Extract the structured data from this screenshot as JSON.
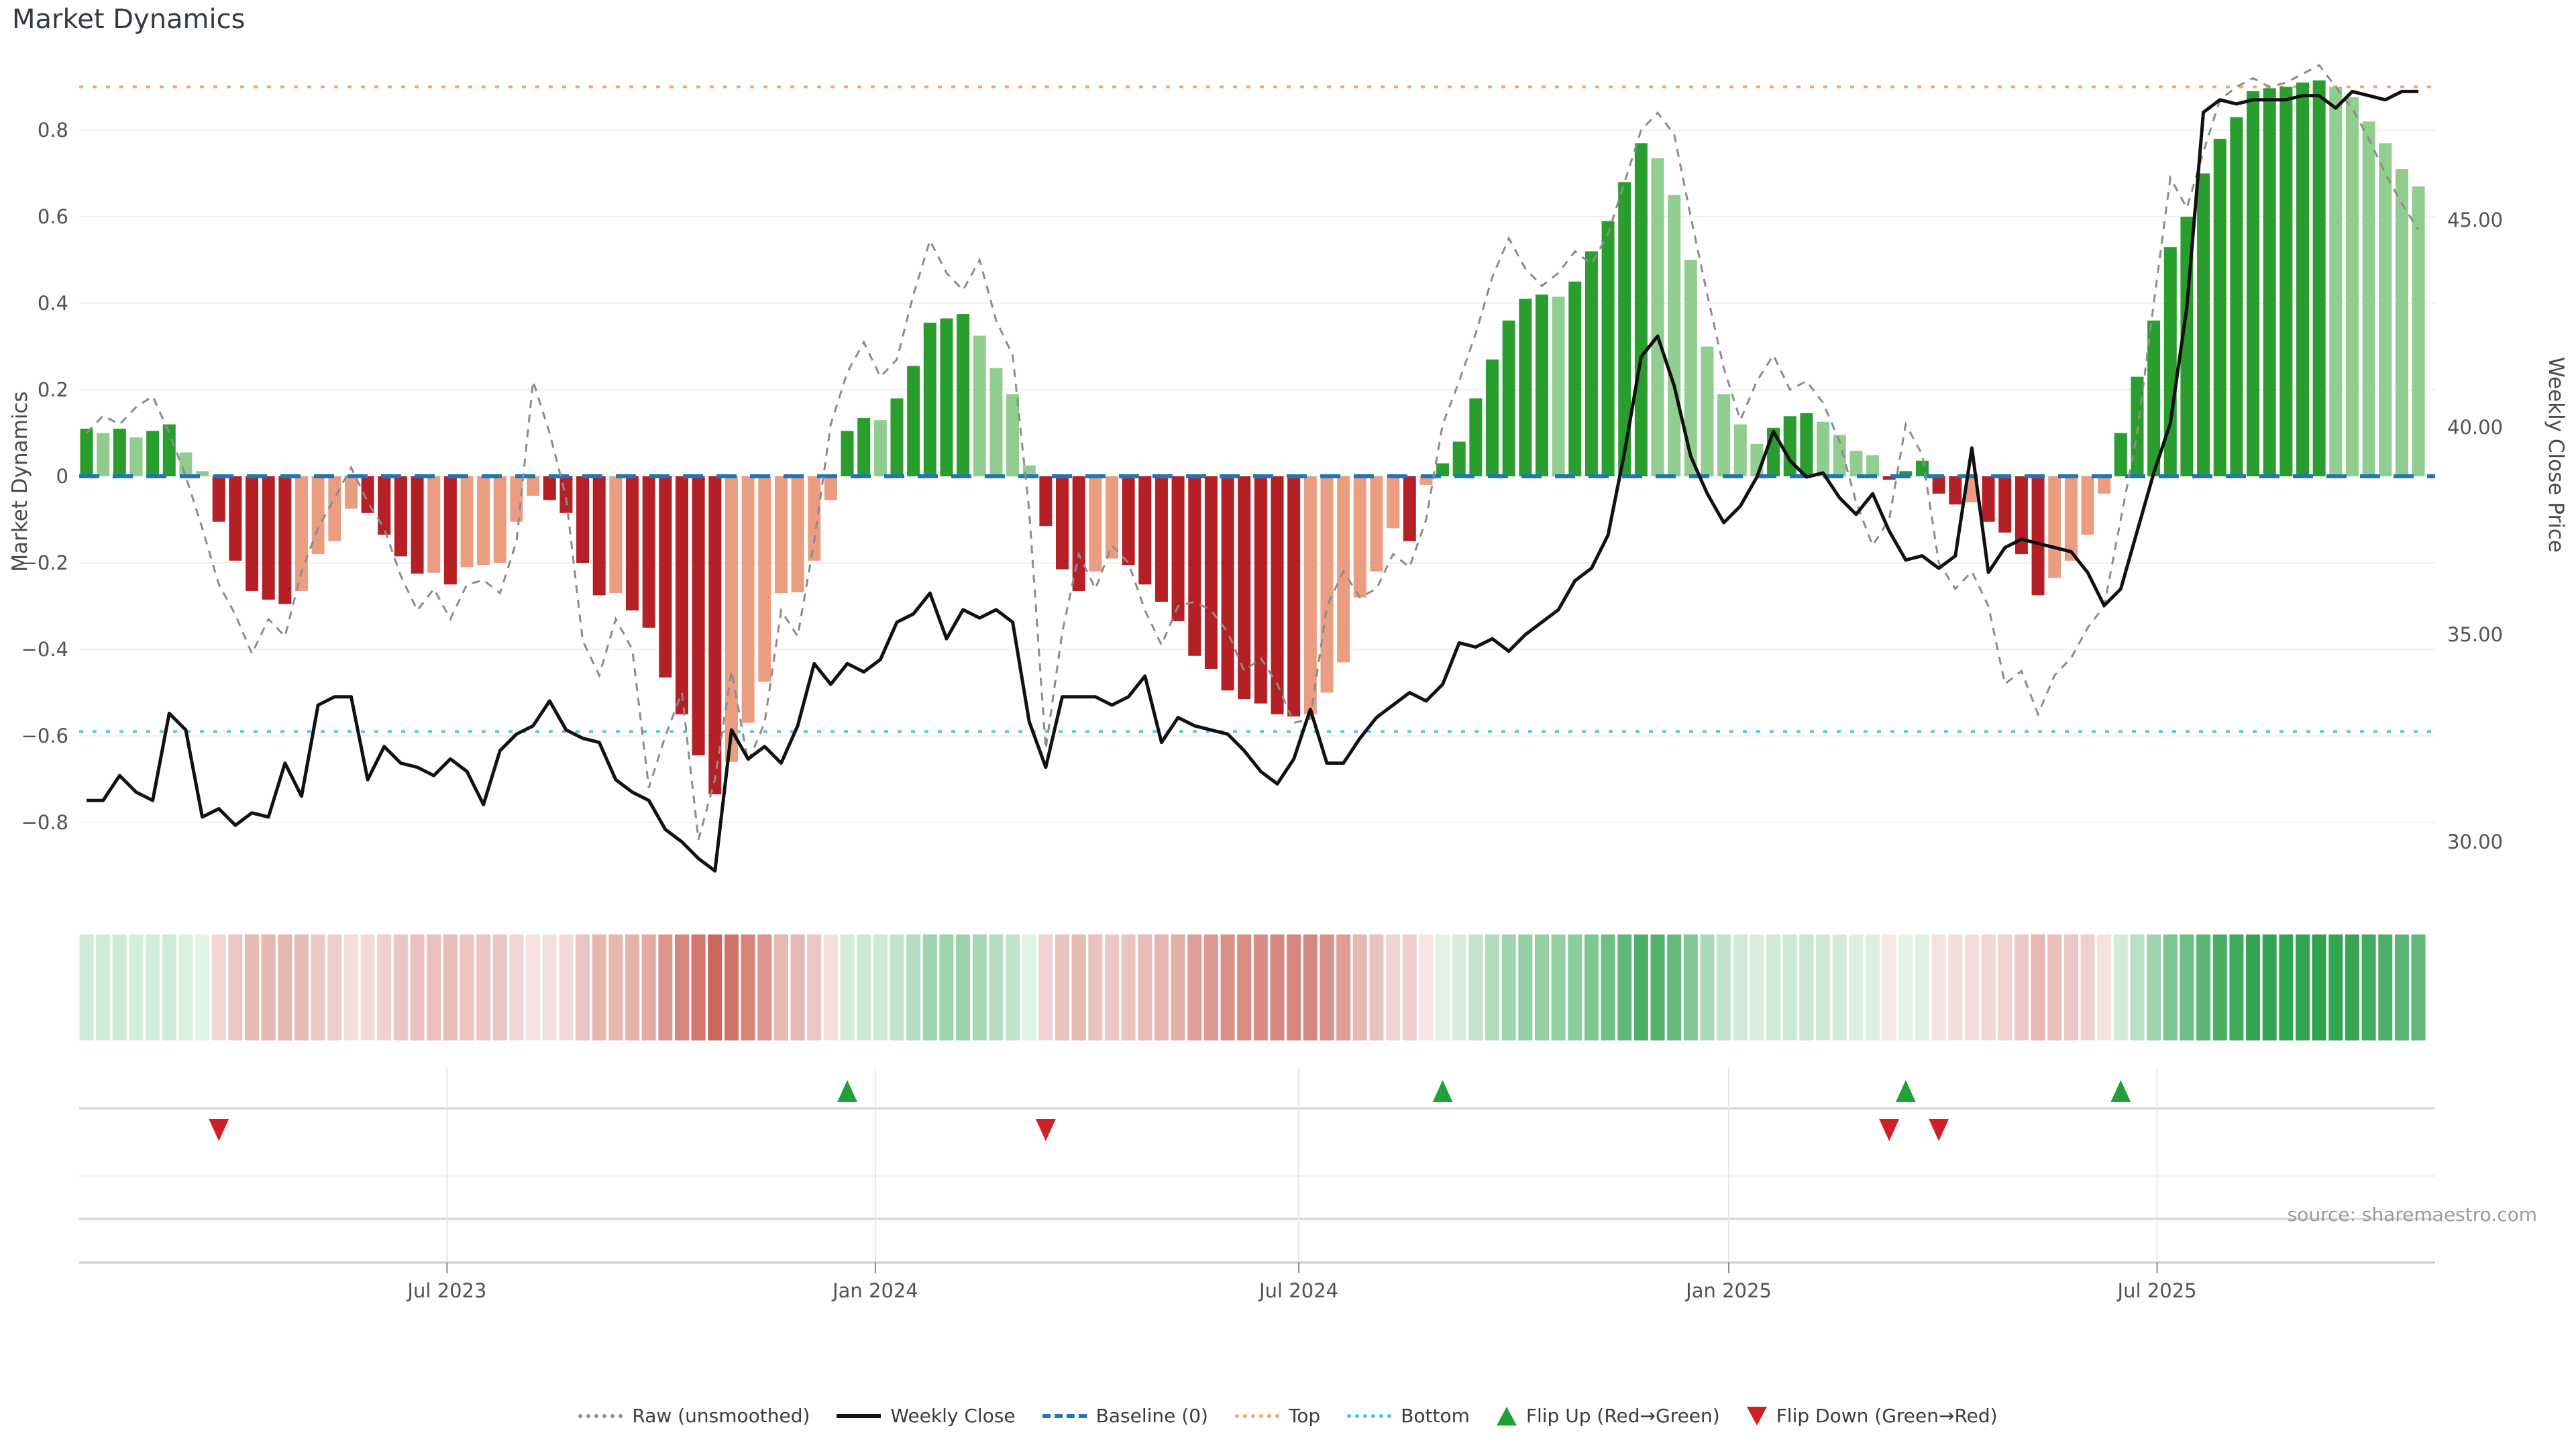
{
  "title": "Market Dynamics",
  "source_note": "source: sharemaestro.com",
  "colors": {
    "bar_dark_green": "#2a9d2f",
    "bar_light_green": "#90cd8e",
    "bar_dark_red": "#b42025",
    "bar_light_red": "#eb9d82",
    "baseline_blue": "#1f77b4",
    "top_line_orange": "#f5a86a",
    "bottom_line_cyan": "#45c8e8",
    "raw_line_gray": "#8c8c8c",
    "close_line_black": "#111111",
    "flip_up_green": "#21a038",
    "flip_down_red": "#cf2026",
    "heatmap_green": "#2ea34e",
    "heatmap_red": "#c04637",
    "gridline": "#eff1f3",
    "tick_text": "#525252"
  },
  "legend": {
    "items": [
      {
        "label": "Raw (unsmoothed)",
        "icon": "dotted-gray-line"
      },
      {
        "label": "Weekly Close",
        "icon": "solid-black-line"
      },
      {
        "label": "Baseline (0)",
        "icon": "dashed-blue-line"
      },
      {
        "label": "Top",
        "icon": "dotted-orange-line"
      },
      {
        "label": "Bottom",
        "icon": "dotted-cyan-line"
      },
      {
        "label": "Flip Up (Red→Green)",
        "icon": "green-up-triangle"
      },
      {
        "label": "Flip Down (Green→Red)",
        "icon": "red-down-triangle"
      }
    ]
  },
  "chart_data": {
    "type": "bar",
    "subtype": "weekly oscillator bars + raw dashed line (left axis) + weekly close price line (right axis) + heatmap ribbon + flip marker rows",
    "title": "Market Dynamics",
    "xlabel": "",
    "x_axis": {
      "tick_labels": [
        "Jul 2023",
        "Jan 2024",
        "Jul 2024",
        "Jan 2025",
        "Jul 2025"
      ],
      "tick_week_positions": [
        21.8,
        47.7,
        73.3,
        99.3,
        125.2
      ],
      "n_weeks": 142
    },
    "y_left": {
      "label": "Market Dynamics",
      "tick_values": [
        0.8,
        0.6,
        0.4,
        0.2,
        0,
        -0.2,
        -0.4,
        -0.6,
        -0.8
      ],
      "tick_labels": [
        "0.8",
        "0.6",
        "0.4",
        "0.2",
        "0",
        "−0.2",
        "−0.4",
        "−0.6",
        "−0.8"
      ],
      "range": [
        -1.02,
        0.95
      ]
    },
    "y_right": {
      "label": "Weekly Close Price",
      "tick_values": [
        45,
        40,
        35,
        30
      ],
      "tick_labels": [
        "45.00",
        "40.00",
        "35.00",
        "30.00"
      ],
      "range": [
        28.6,
        48.8
      ]
    },
    "reference_lines": {
      "baseline": 0,
      "top": 0.9,
      "bottom": -0.59
    },
    "legend_position": "bottom center",
    "grid": "horizontal only",
    "series": {
      "oscillator": [
        0.11,
        0.1,
        0.11,
        0.09,
        0.105,
        0.12,
        0.055,
        0.012,
        -0.105,
        -0.195,
        -0.265,
        -0.285,
        -0.295,
        -0.265,
        -0.18,
        -0.15,
        -0.075,
        -0.085,
        -0.135,
        -0.185,
        -0.225,
        -0.223,
        -0.25,
        -0.21,
        -0.205,
        -0.2,
        -0.105,
        -0.045,
        -0.055,
        -0.085,
        -0.2,
        -0.275,
        -0.27,
        -0.31,
        -0.35,
        -0.465,
        -0.55,
        -0.645,
        -0.735,
        -0.66,
        -0.57,
        -0.475,
        -0.27,
        -0.268,
        -0.195,
        -0.055,
        0.105,
        0.135,
        0.13,
        0.18,
        0.255,
        0.355,
        0.365,
        0.375,
        0.325,
        0.25,
        0.19,
        0.025,
        -0.115,
        -0.215,
        -0.265,
        -0.22,
        -0.19,
        -0.205,
        -0.25,
        -0.29,
        -0.335,
        -0.415,
        -0.445,
        -0.495,
        -0.515,
        -0.525,
        -0.55,
        -0.555,
        -0.55,
        -0.5,
        -0.43,
        -0.28,
        -0.22,
        -0.12,
        -0.15,
        -0.02,
        0.03,
        0.08,
        0.18,
        0.27,
        0.36,
        0.41,
        0.42,
        0.415,
        0.45,
        0.52,
        0.59,
        0.68,
        0.77,
        0.735,
        0.65,
        0.5,
        0.3,
        0.19,
        0.12,
        0.075,
        0.112,
        0.139,
        0.146,
        0.126,
        0.096,
        0.059,
        0.049,
        -0.008,
        0.012,
        0.036,
        -0.04,
        -0.065,
        -0.06,
        -0.105,
        -0.13,
        -0.18,
        -0.275,
        -0.235,
        -0.195,
        -0.135,
        -0.04,
        0.1,
        0.23,
        0.36,
        0.53,
        0.6,
        0.7,
        0.78,
        0.83,
        0.89,
        0.897,
        0.9,
        0.91,
        0.915,
        0.9,
        0.876,
        0.82,
        0.77,
        0.71,
        0.67
      ],
      "raw_unsmoothed": [
        0.1,
        0.14,
        0.12,
        0.16,
        0.185,
        0.1,
        0.0,
        -0.12,
        -0.25,
        -0.32,
        -0.41,
        -0.33,
        -0.37,
        -0.22,
        -0.12,
        -0.05,
        0.02,
        -0.06,
        -0.12,
        -0.23,
        -0.31,
        -0.26,
        -0.33,
        -0.25,
        -0.24,
        -0.27,
        -0.15,
        0.22,
        0.1,
        -0.05,
        -0.38,
        -0.46,
        -0.33,
        -0.4,
        -0.72,
        -0.6,
        -0.5,
        -0.84,
        -0.7,
        -0.45,
        -0.66,
        -0.57,
        -0.31,
        -0.37,
        -0.15,
        0.12,
        0.24,
        0.31,
        0.23,
        0.27,
        0.42,
        0.545,
        0.47,
        0.43,
        0.5,
        0.36,
        0.28,
        -0.08,
        -0.63,
        -0.36,
        -0.18,
        -0.26,
        -0.16,
        -0.2,
        -0.31,
        -0.39,
        -0.3,
        -0.29,
        -0.31,
        -0.36,
        -0.45,
        -0.42,
        -0.48,
        -0.57,
        -0.56,
        -0.3,
        -0.22,
        -0.28,
        -0.26,
        -0.18,
        -0.21,
        -0.1,
        0.12,
        0.22,
        0.33,
        0.46,
        0.55,
        0.48,
        0.44,
        0.47,
        0.52,
        0.49,
        0.56,
        0.68,
        0.8,
        0.84,
        0.79,
        0.6,
        0.42,
        0.25,
        0.13,
        0.22,
        0.28,
        0.2,
        0.22,
        0.17,
        0.08,
        -0.06,
        -0.16,
        -0.1,
        0.12,
        0.05,
        -0.2,
        -0.26,
        -0.22,
        -0.3,
        -0.48,
        -0.45,
        -0.55,
        -0.46,
        -0.42,
        -0.35,
        -0.3,
        -0.1,
        0.1,
        0.4,
        0.69,
        0.62,
        0.75,
        0.87,
        0.9,
        0.92,
        0.9,
        0.91,
        0.93,
        0.95,
        0.9,
        0.85,
        0.78,
        0.7,
        0.63,
        0.57
      ],
      "weekly_close": [
        31.0,
        31.0,
        31.6,
        31.2,
        31.0,
        33.1,
        32.7,
        30.6,
        30.8,
        30.4,
        30.7,
        30.6,
        31.9,
        31.1,
        33.3,
        33.5,
        33.5,
        31.5,
        32.3,
        31.9,
        31.8,
        31.6,
        32.0,
        31.7,
        30.9,
        32.2,
        32.6,
        32.8,
        33.4,
        32.7,
        32.5,
        32.4,
        31.5,
        31.2,
        31.0,
        30.3,
        30.0,
        29.6,
        29.3,
        32.7,
        32.0,
        32.3,
        31.9,
        32.8,
        34.3,
        33.8,
        34.3,
        34.1,
        34.4,
        35.3,
        35.5,
        36.0,
        34.9,
        35.6,
        35.4,
        35.6,
        35.3,
        32.9,
        31.8,
        33.5,
        33.5,
        33.5,
        33.3,
        33.5,
        34.0,
        32.4,
        33.0,
        32.8,
        32.7,
        32.6,
        32.2,
        31.7,
        31.4,
        32.0,
        33.2,
        31.9,
        31.9,
        32.5,
        33.0,
        33.3,
        33.6,
        33.4,
        33.8,
        34.8,
        34.7,
        34.9,
        34.6,
        35.0,
        35.3,
        35.6,
        36.3,
        36.6,
        37.4,
        39.4,
        41.7,
        42.2,
        41.0,
        39.3,
        38.4,
        37.7,
        38.1,
        38.8,
        39.9,
        39.2,
        38.8,
        38.9,
        38.3,
        37.9,
        38.4,
        37.5,
        36.8,
        36.9,
        36.6,
        36.9,
        39.5,
        36.5,
        37.1,
        37.3,
        37.2,
        37.1,
        37.0,
        36.5,
        35.7,
        36.1,
        37.5,
        38.9,
        40.1,
        42.9,
        47.6,
        47.9,
        47.8,
        47.9,
        47.9,
        47.9,
        48.0,
        48.0,
        47.7,
        48.1,
        48.0,
        47.9,
        48.1,
        48.1
      ],
      "flip_up_weeks": [
        46,
        82,
        110,
        123
      ],
      "flip_down_weeks": [
        8,
        58,
        109,
        112
      ]
    },
    "heatmap_ribbon": "same weekly oscillator values rendered as green/red cells, color intensity proportional to |value|",
    "marker_rows": [
      "Flip Up (Red→Green)",
      "Flip Down (Green→Red)"
    ]
  }
}
